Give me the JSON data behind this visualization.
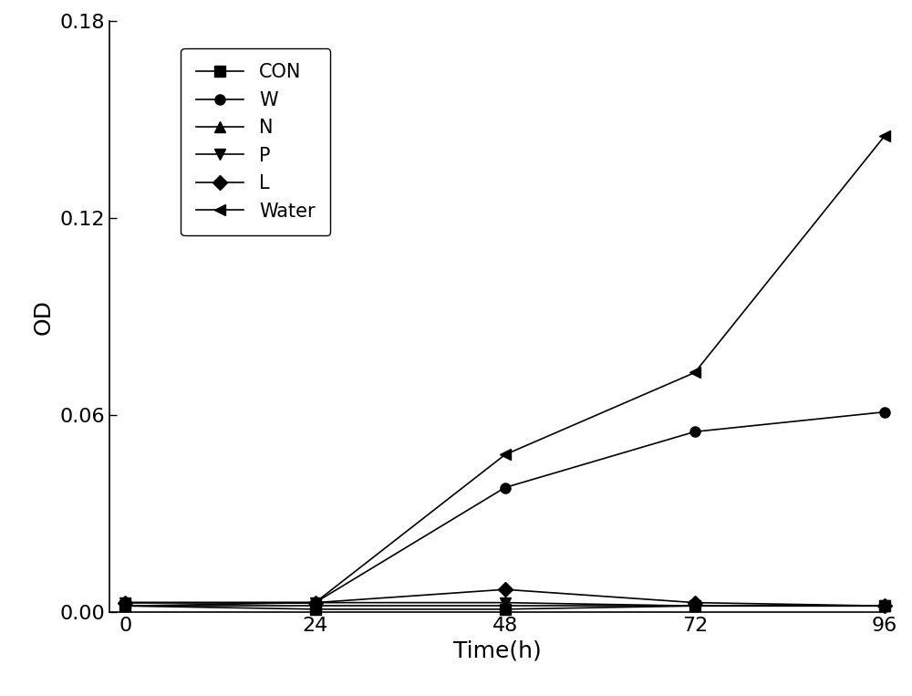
{
  "x": [
    0,
    24,
    48,
    72,
    96
  ],
  "series": [
    {
      "label": "CON",
      "marker": "s",
      "values": [
        0.002,
        0.001,
        0.001,
        0.002,
        0.002
      ]
    },
    {
      "label": "W",
      "marker": "o",
      "values": [
        0.002,
        0.003,
        0.038,
        0.055,
        0.061
      ]
    },
    {
      "label": "N",
      "marker": "^",
      "values": [
        0.002,
        0.002,
        0.002,
        0.002,
        0.002
      ]
    },
    {
      "label": "P",
      "marker": "v",
      "values": [
        0.003,
        0.003,
        0.003,
        0.002,
        0.002
      ]
    },
    {
      "label": "L",
      "marker": "D",
      "values": [
        0.003,
        0.003,
        0.007,
        0.003,
        0.002
      ]
    },
    {
      "label": "Water",
      "marker": "<",
      "values": [
        0.003,
        0.003,
        0.048,
        0.073,
        0.145
      ]
    }
  ],
  "xlabel": "Time(h)",
  "ylabel": "OD",
  "ylim": [
    0,
    0.18
  ],
  "xlim": [
    -2,
    96
  ],
  "yticks": [
    0.0,
    0.06,
    0.12,
    0.18
  ],
  "xticks": [
    0,
    24,
    48,
    72,
    96
  ],
  "color": "#000000",
  "linewidth": 1.2,
  "markersize": 8,
  "axis_fontsize": 18,
  "tick_fontsize": 16,
  "legend_fontsize": 15
}
